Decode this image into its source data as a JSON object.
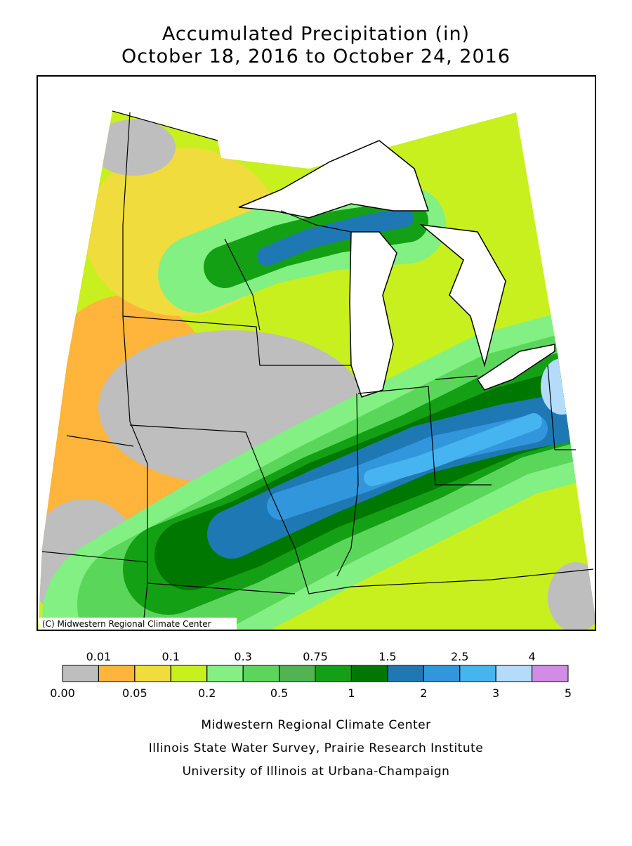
{
  "header": {
    "title": "Accumulated Precipitation (in)",
    "subtitle": "October 18, 2016 to October 24, 2016"
  },
  "map": {
    "copyright": "(C) Midwestern Regional Climate Center"
  },
  "legend": {
    "colors": [
      "#bebebe",
      "#ffb43c",
      "#f0dc3c",
      "#c8f01e",
      "#82f082",
      "#5ad75a",
      "#50b450",
      "#14a014",
      "#007800",
      "#1e78b4",
      "#3296dc",
      "#46b4f0",
      "#b4dcfa",
      "#d28ce6"
    ],
    "ticks": [
      {
        "value": 0,
        "label": "0.00"
      },
      0.01,
      0.05,
      0.1,
      0.2,
      0.3,
      0.5,
      0.75,
      1,
      1.5,
      2,
      2.5,
      3,
      4,
      5
    ]
  },
  "footer": [
    "Midwestern Regional Climate Center",
    "Illinois State Water Survey, Prairie Research Institute",
    "University of Illinois at Urbana-Champaign"
  ]
}
